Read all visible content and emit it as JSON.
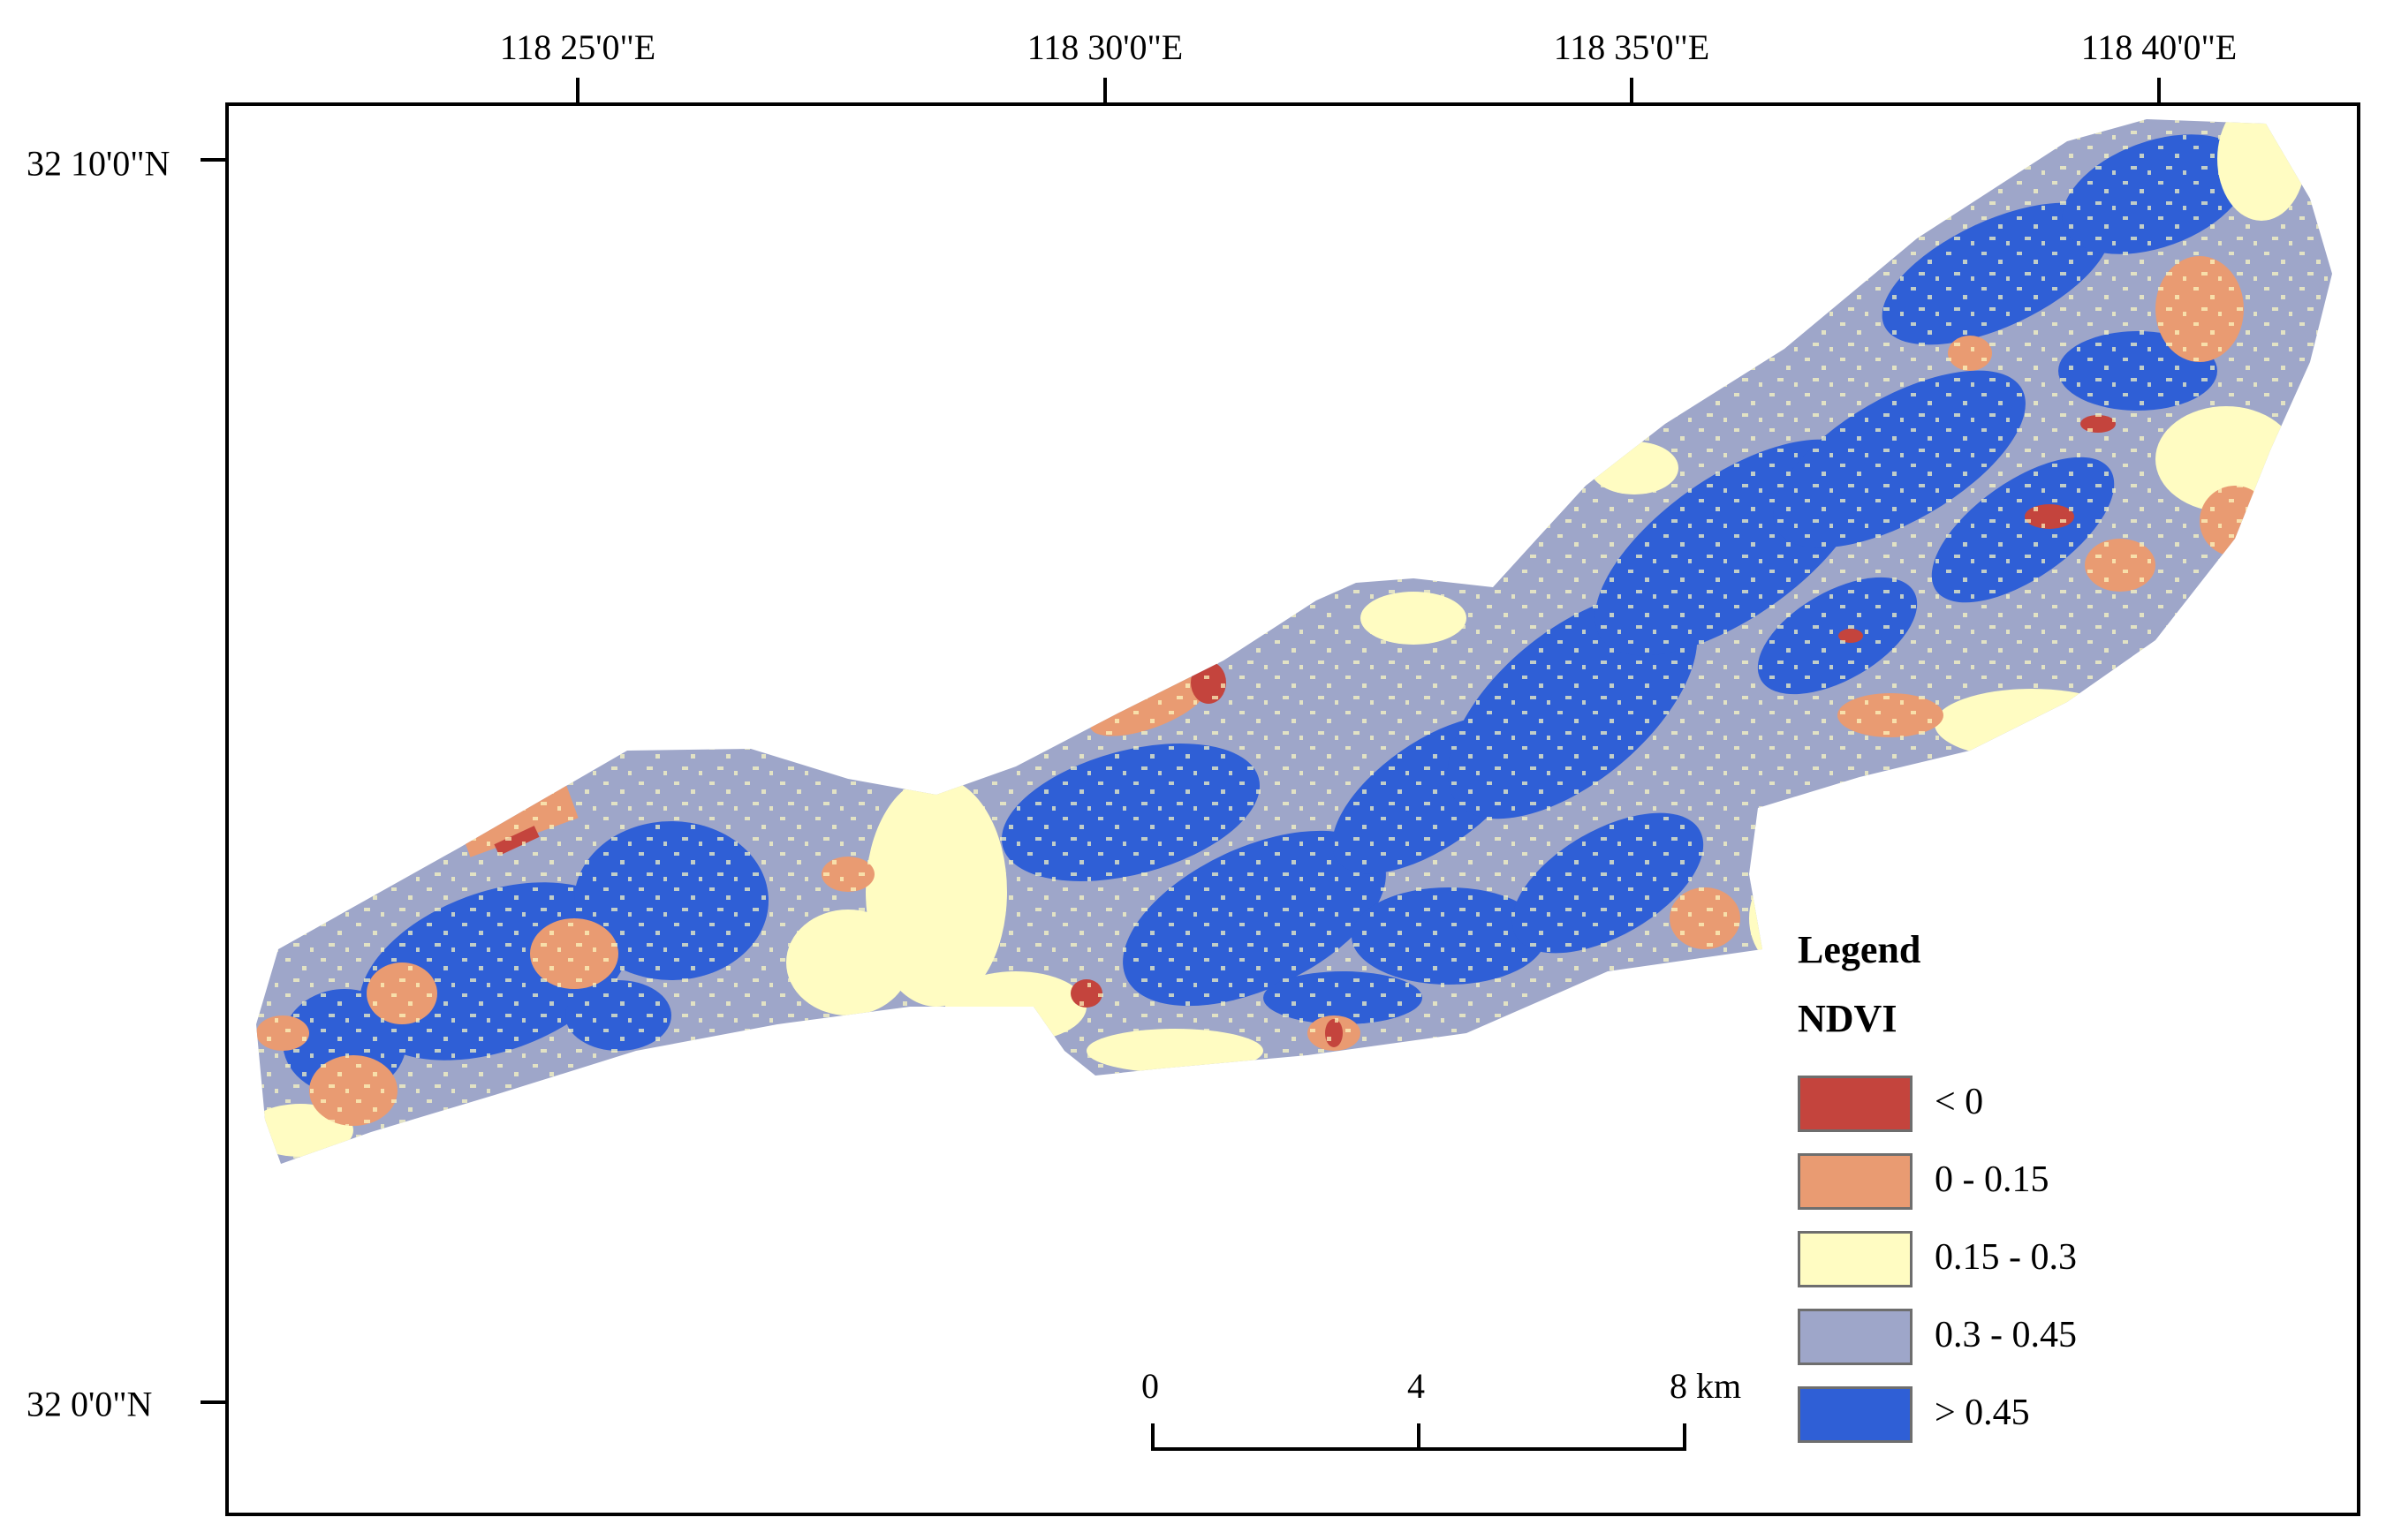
{
  "map": {
    "top_ticks": [
      {
        "label": "118  25'0\"E"
      },
      {
        "label": "118  30'0\"E"
      },
      {
        "label": "118  35'0\"E"
      },
      {
        "label": "118  40'0\"E"
      }
    ],
    "left_ticks": [
      {
        "label": "32  10'0\"N"
      },
      {
        "label": "32  0'0\"N"
      }
    ],
    "legend": {
      "title": "Legend",
      "subtitle": "NDVI",
      "items": [
        {
          "label": "< 0",
          "color": "#c4443d"
        },
        {
          "label": "0 - 0.15",
          "color": "#e99b72"
        },
        {
          "label": "0.15 - 0.3",
          "color": "#fffcc2"
        },
        {
          "label": "0.3 - 0.45",
          "color": "#9ea6c9"
        },
        {
          "label": "> 0.45",
          "color": "#2f5fd6"
        }
      ]
    },
    "scale_bar": {
      "labels": [
        "0",
        "4",
        "8 km"
      ]
    }
  }
}
